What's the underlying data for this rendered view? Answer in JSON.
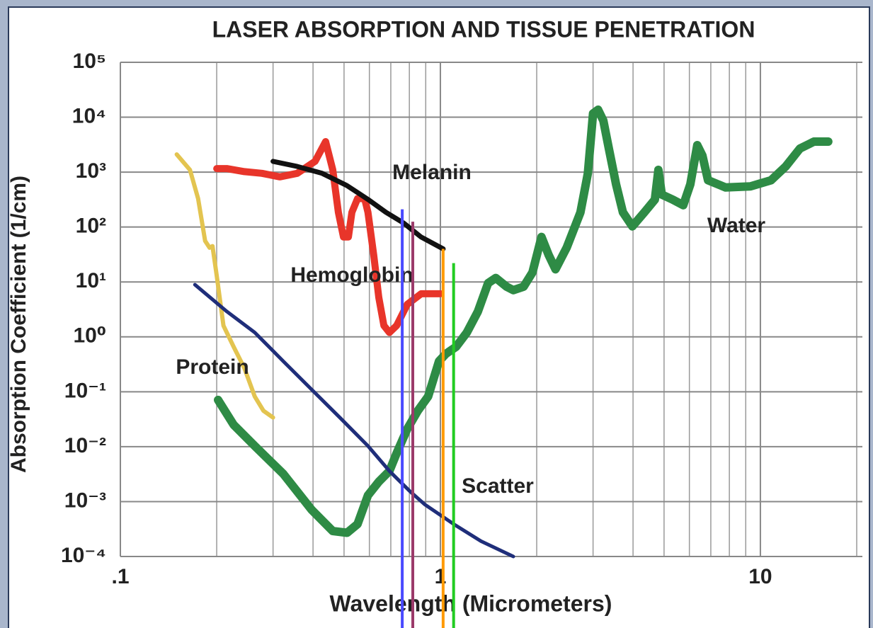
{
  "chart_data": {
    "type": "line",
    "title": "LASER ABSORPTION AND TISSUE PENETRATION",
    "x_label": "Wavelength (Micrometers)",
    "y_label": "Absorption Coefficient (1/cm)",
    "xscale": "log",
    "yscale": "log",
    "grid": true,
    "xlim": [
      0.1,
      20
    ],
    "ylim": [
      0.0001,
      100000
    ],
    "xticks": [
      {
        "value": 0.1,
        "label": ".1"
      },
      1,
      10
    ],
    "x_minor_grid": [
      0.2,
      0.3,
      0.4,
      0.5,
      0.6,
      0.7,
      0.8,
      0.9,
      2,
      3,
      4,
      5,
      6,
      7,
      8,
      9,
      20
    ],
    "yticks": [
      {
        "value": 0.0001,
        "label": "10⁻⁴"
      },
      {
        "value": 0.001,
        "label": "10⁻³"
      },
      {
        "value": 0.01,
        "label": "10⁻²"
      },
      {
        "value": 0.1,
        "label": "10⁻¹"
      },
      {
        "value": 1,
        "label": "10⁰"
      },
      {
        "value": 10,
        "label": "10¹"
      },
      {
        "value": 100,
        "label": "10²"
      },
      {
        "value": 1000,
        "label": "10³"
      },
      {
        "value": 10000,
        "label": "10⁴"
      },
      {
        "value": 100000,
        "label": "10⁵"
      }
    ],
    "series": [
      {
        "name": "Protein",
        "color": "#e3c450",
        "x": [
          0.15,
          0.165,
          0.175,
          0.184,
          0.19,
          0.194,
          0.2,
          0.21,
          0.226,
          0.244,
          0.263,
          0.28,
          0.3
        ],
        "values": [
          2100,
          1100,
          330,
          56,
          42,
          45,
          13,
          1.6,
          0.66,
          0.27,
          0.082,
          0.045,
          0.034
        ]
      },
      {
        "name": "Hemoglobin",
        "color": "#e8352a",
        "x": [
          0.2,
          0.215,
          0.244,
          0.277,
          0.315,
          0.357,
          0.406,
          0.438,
          0.461,
          0.48,
          0.498,
          0.516,
          0.529,
          0.551,
          0.58,
          0.594,
          0.619,
          0.642,
          0.666,
          0.693,
          0.73,
          0.788,
          0.871,
          1
        ],
        "values": [
          1160,
          1160,
          1020,
          950,
          820,
          950,
          1570,
          3600,
          1100,
          185,
          66,
          66,
          185,
          330,
          330,
          185,
          31,
          5.2,
          1.6,
          1.2,
          1.6,
          3.9,
          6.1,
          6.1
        ]
      },
      {
        "name": "Melanin",
        "color": "#111111",
        "x": [
          0.3,
          0.357,
          0.427,
          0.51,
          0.595,
          0.676,
          0.768,
          0.87,
          1.02
        ],
        "values": [
          1570,
          1270,
          950,
          570,
          316,
          185,
          118,
          66,
          40
        ]
      },
      {
        "name": "Water",
        "color": "#2e8b45",
        "x": [
          0.202,
          0.226,
          0.263,
          0.323,
          0.396,
          0.461,
          0.511,
          0.551,
          0.594,
          0.642,
          0.693,
          0.73,
          0.788,
          0.85,
          0.916,
          0.99,
          1.04,
          1.12,
          1.21,
          1.31,
          1.41,
          1.49,
          1.61,
          1.69,
          1.82,
          1.94,
          2.07,
          2.18,
          2.29,
          2.48,
          2.74,
          2.89,
          3.0,
          3.11,
          3.23,
          3.36,
          3.54,
          3.72,
          3.98,
          4.34,
          4.68,
          4.8,
          4.92,
          5.32,
          5.74,
          6.04,
          6.35,
          6.59,
          6.86,
          7.79,
          9.31,
          10.8,
          12.0,
          13.3,
          14.7,
          16.3
        ],
        "values": [
          0.071,
          0.025,
          0.0103,
          0.0032,
          0.00071,
          0.00029,
          0.00027,
          0.00039,
          0.0013,
          0.0023,
          0.0036,
          0.0076,
          0.021,
          0.045,
          0.082,
          0.36,
          0.49,
          0.66,
          1.2,
          2.9,
          9.5,
          11.8,
          8.2,
          7.1,
          8.2,
          14.9,
          66,
          31,
          17,
          42,
          185,
          950,
          11700,
          13700,
          8700,
          2700,
          600,
          185,
          103,
          185,
          316,
          1100,
          390,
          316,
          250,
          600,
          3100,
          2000,
          710,
          525,
          550,
          710,
          1270,
          2700,
          3600,
          3600
        ]
      },
      {
        "name": "Scatter",
        "color": "#1f2e7a",
        "x": [
          0.171,
          0.215,
          0.263,
          0.323,
          0.396,
          0.485,
          0.594,
          0.693,
          0.807,
          0.893,
          1.1,
          1.34,
          1.69
        ],
        "values": [
          8.9,
          2.9,
          1.2,
          0.36,
          0.11,
          0.034,
          0.0103,
          0.0036,
          0.0015,
          0.00089,
          0.00039,
          0.00019,
          0.0001
        ]
      }
    ],
    "vertical_lines": [
      {
        "x": 0.76,
        "y_top": 210,
        "color": "#4a4aff"
      },
      {
        "x": 0.82,
        "y_top": 125,
        "color": "#9b3a6a"
      },
      {
        "x": 1.02,
        "y_top": 40,
        "color": "#ff9a00"
      },
      {
        "x": 1.1,
        "y_top": 22,
        "color": "#22cc22"
      }
    ]
  }
}
